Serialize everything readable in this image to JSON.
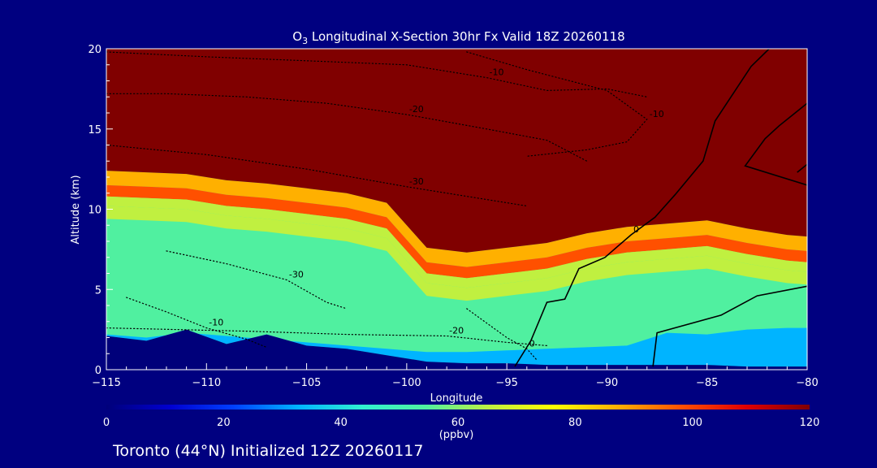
{
  "chart_data": {
    "type": "heatmap",
    "title_species": "O",
    "title_subscript": "3",
    "title_rest": " Longitudinal X-Section 30hr  Fx Valid 18Z 20260118",
    "xlabel": "Longitude",
    "ylabel": "Altitude (km)",
    "xlim": [
      -115,
      -80
    ],
    "ylim": [
      0,
      20
    ],
    "x_ticks": [
      -115,
      -110,
      -105,
      -100,
      -95,
      -90,
      -85,
      -80
    ],
    "x_tick_labels": [
      "−115",
      "−110",
      "−105",
      "−100",
      "−95",
      "−90",
      "−85",
      "−80"
    ],
    "y_ticks": [
      0,
      5,
      10,
      15,
      20
    ],
    "y_tick_labels": [
      "0",
      "5",
      "10",
      "15",
      "20"
    ],
    "colorbar": {
      "range": [
        0,
        120
      ],
      "ticks": [
        0,
        20,
        40,
        60,
        80,
        100,
        120
      ],
      "tick_labels": [
        "0",
        "20",
        "40",
        "60",
        "80",
        "100",
        "120"
      ],
      "units": "(ppbv)",
      "colors": [
        "#00007a",
        "#0000d0",
        "#0040ff",
        "#00b4ff",
        "#30f0d0",
        "#50f0a0",
        "#c0f040",
        "#ffff00",
        "#ffb000",
        "#ff5000",
        "#e00000",
        "#800000"
      ]
    },
    "ozone_field": {
      "x": [
        -115,
        -113,
        -111,
        -109,
        -107,
        -105,
        -103,
        -101,
        -99,
        -97,
        -95,
        -93,
        -91,
        -89,
        -87,
        -85,
        -83,
        -81,
        -80
      ],
      "stratosphere_base_km": [
        12.4,
        12.3,
        12.2,
        11.8,
        11.6,
        11.3,
        11.0,
        10.4,
        7.6,
        7.3,
        7.6,
        7.9,
        8.5,
        8.9,
        9.1,
        9.3,
        8.8,
        8.4,
        8.3
      ],
      "boundary_layer_top_km": [
        2.2,
        2.0,
        2.3,
        2.1,
        1.9,
        1.7,
        1.5,
        1.3,
        1.1,
        1.1,
        1.2,
        1.3,
        1.4,
        1.5,
        2.3,
        2.2,
        2.5,
        2.6,
        2.6
      ],
      "terrain_km": [
        2.1,
        1.8,
        2.5,
        1.6,
        2.2,
        1.5,
        1.3,
        0.9,
        0.5,
        0.4,
        0.4,
        0.3,
        0.3,
        0.3,
        0.3,
        0.3,
        0.2,
        0.2,
        0.2
      ],
      "stratosphere_ppbv": 120,
      "tropopause_ppbv": 90,
      "free_troposphere_ppbv": 50,
      "boundary_layer_ppbv": 30,
      "terrain_ppbv": 5
    },
    "contours": [
      {
        "label": "-10",
        "style": "dotted",
        "points": [
          [
            -115,
            19.8
          ],
          [
            -110,
            19.5
          ],
          [
            -104,
            19.2
          ],
          [
            -100,
            19.0
          ],
          [
            -96,
            18.2
          ],
          [
            -93,
            17.4
          ],
          [
            -90,
            17.5
          ],
          [
            -88,
            17.0
          ]
        ]
      },
      {
        "label": "-20",
        "style": "dotted",
        "points": [
          [
            -115,
            17.2
          ],
          [
            -112,
            17.2
          ],
          [
            -108,
            17.0
          ],
          [
            -104,
            16.6
          ],
          [
            -100,
            15.9
          ],
          [
            -96,
            15.0
          ],
          [
            -93,
            14.3
          ],
          [
            -91,
            13.0
          ]
        ]
      },
      {
        "label": "-10",
        "style": "dotted",
        "points": [
          [
            -97,
            19.8
          ],
          [
            -94,
            18.7
          ],
          [
            -90,
            17.4
          ],
          [
            -88,
            15.6
          ],
          [
            -89,
            14.2
          ],
          [
            -91,
            13.7
          ],
          [
            -94,
            13.3
          ]
        ]
      },
      {
        "label": "-30",
        "style": "dotted",
        "points": [
          [
            -115,
            14.0
          ],
          [
            -110,
            13.4
          ],
          [
            -105,
            12.5
          ],
          [
            -100,
            11.4
          ],
          [
            -98,
            11.0
          ],
          [
            -96,
            10.6
          ],
          [
            -94,
            10.2
          ]
        ]
      },
      {
        "label": "-10",
        "style": "dotted",
        "points": [
          [
            -114,
            4.5
          ],
          [
            -112,
            3.6
          ],
          [
            -110,
            2.6
          ],
          [
            -108,
            1.9
          ],
          [
            -107,
            1.4
          ]
        ]
      },
      {
        "label": "-30",
        "style": "dotted",
        "points": [
          [
            -112,
            7.4
          ],
          [
            -109,
            6.6
          ],
          [
            -106,
            5.6
          ],
          [
            -104,
            4.2
          ],
          [
            -103,
            3.8
          ]
        ]
      },
      {
        "label": "-20",
        "style": "dotted",
        "points": [
          [
            -115,
            2.6
          ],
          [
            -108,
            2.4
          ],
          [
            -103,
            2.2
          ],
          [
            -98,
            2.1
          ],
          [
            -95,
            1.7
          ],
          [
            -93,
            1.5
          ]
        ]
      },
      {
        "label": "0",
        "style": "dotted",
        "points": [
          [
            -97,
            3.8
          ],
          [
            -95,
            2.0
          ],
          [
            -94,
            1.3
          ],
          [
            -93.5,
            0.6
          ]
        ]
      },
      {
        "label": "0",
        "style": "solid",
        "points": [
          [
            -94.6,
            0.2
          ],
          [
            -93.8,
            1.8
          ],
          [
            -93.0,
            4.2
          ],
          [
            -92.1,
            4.4
          ],
          [
            -91.4,
            6.3
          ],
          [
            -90.1,
            7.0
          ],
          [
            -88.8,
            8.4
          ],
          [
            -87.6,
            9.5
          ],
          [
            -86.6,
            10.9
          ],
          [
            -85.2,
            13.0
          ],
          [
            -84.6,
            15.5
          ],
          [
            -82.8,
            18.9
          ],
          [
            -81.9,
            20.0
          ]
        ]
      },
      {
        "label": "",
        "style": "solid",
        "points": [
          [
            -87.7,
            0.2
          ],
          [
            -87.5,
            2.3
          ],
          [
            -84.3,
            3.4
          ],
          [
            -82.5,
            4.6
          ],
          [
            -80.0,
            5.2
          ]
        ]
      },
      {
        "label": "",
        "style": "solid",
        "points": [
          [
            -80.0,
            16.6
          ],
          [
            -81.4,
            15.2
          ],
          [
            -82.1,
            14.4
          ],
          [
            -83.1,
            12.7
          ],
          [
            -80.0,
            11.5
          ]
        ]
      },
      {
        "label": "0",
        "style": "solid",
        "points": [
          [
            -80.5,
            12.3
          ],
          [
            -80.0,
            12.8
          ]
        ]
      }
    ]
  },
  "footer": {
    "location_text": "Toronto (44°N) Initialized 12Z 20260117"
  }
}
